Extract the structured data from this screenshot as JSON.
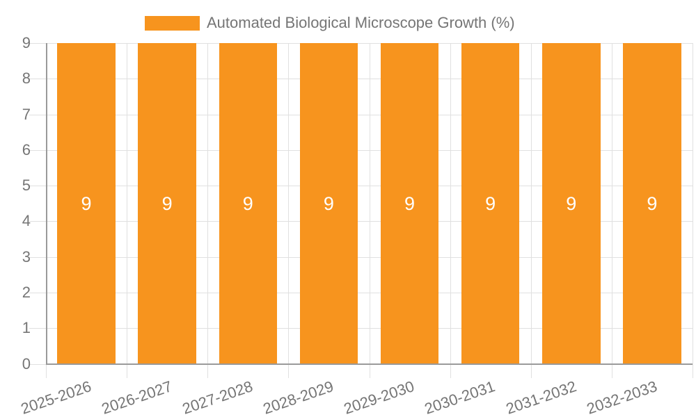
{
  "legend": {
    "position": "top",
    "label": "Automated Biological Microscope Growth (%)"
  },
  "chart_data": {
    "type": "bar",
    "title": "Automated Biological Microscope Growth (%)",
    "xlabel": "",
    "ylabel": "",
    "categories": [
      "2025-2026",
      "2026-2027",
      "2027-2028",
      "2028-2029",
      "2029-2030",
      "2030-2031",
      "2031-2032",
      "2032-2033"
    ],
    "values": [
      9,
      9,
      9,
      9,
      9,
      9,
      9,
      9
    ],
    "bar_value_labels": [
      "9",
      "9",
      "9",
      "9",
      "9",
      "9",
      "9",
      "9"
    ],
    "ylim": [
      0,
      9
    ],
    "yticks": [
      0,
      1,
      2,
      3,
      4,
      5,
      6,
      7,
      8,
      9
    ],
    "grid": true,
    "x_label_rotation_deg": -19,
    "legend_position": "top",
    "colors": {
      "bar": "#F7941E",
      "bar_value_label": "#FFFFFF",
      "axis_text": "#757575",
      "grid_line": "#E0E0E0",
      "axis_line": "#9A9A9A",
      "background": "#FFFFFF"
    }
  }
}
